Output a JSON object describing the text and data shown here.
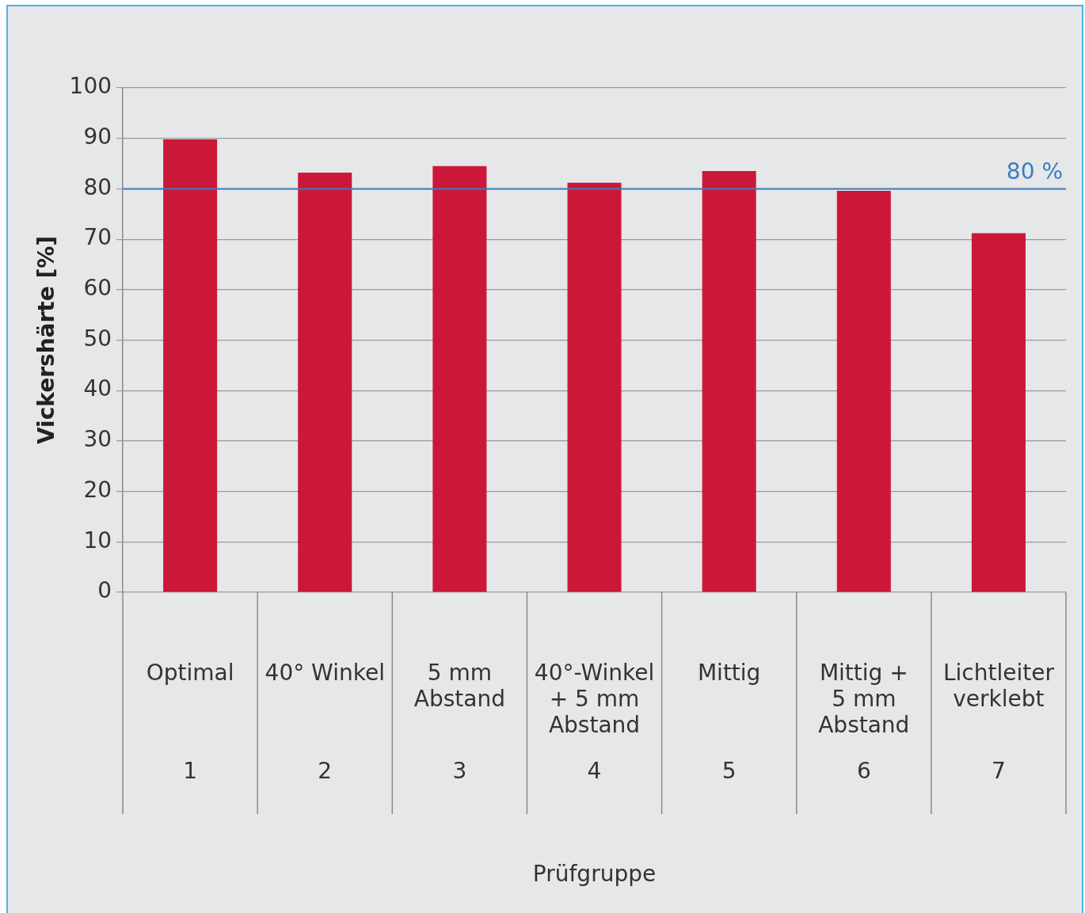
{
  "chart_data": {
    "type": "bar",
    "xlabel": "Prüfgruppe",
    "ylabel": "Vickershärte [%]",
    "categories": [
      "Optimal\n1",
      "40° Winkel\n2",
      "5 mm\nAbstand\n3",
      "40°-Winkel\n+ 5 mm\nAbstand\n4",
      "Mittig\n5",
      "Mittig +\n5 mm\nAbstand\n6",
      "Lichtleiter\nverklebt\n7"
    ],
    "values": [
      89.8,
      83.2,
      84.5,
      81.2,
      83.5,
      79.6,
      71.2
    ],
    "color": "#cc1838",
    "ylim": [
      0,
      100
    ],
    "yticks": [
      0,
      10,
      20,
      30,
      40,
      50,
      60,
      70,
      80,
      90,
      100
    ],
    "grid": "y",
    "legend": false,
    "ref_lines": [
      {
        "axis": "y",
        "value": 80,
        "label": "80 %",
        "color": "#3a7dc0"
      }
    ]
  }
}
